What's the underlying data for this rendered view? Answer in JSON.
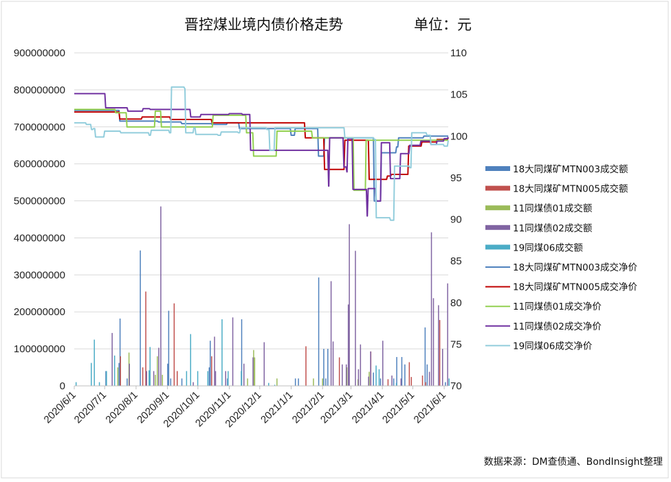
{
  "chart_data": {
    "type": "bar+line",
    "title": "晋控煤业境内债价格走势",
    "unit_label": "单位：元",
    "source": "数据来源：DM查债通、BondInsight整理",
    "x_range": [
      "2020-06-01",
      "2021-06-05"
    ],
    "x_ticks": [
      "2020/6/1",
      "2020/7/1",
      "2020/8/1",
      "2020/9/1",
      "2020/10/1",
      "2020/11/1",
      "2020/12/1",
      "2021/1/1",
      "2021/2/1",
      "2021/3/1",
      "2021/4/1",
      "2021/5/1",
      "2021/6/1"
    ],
    "y_left": {
      "range": [
        0,
        900000000
      ],
      "ticks": [
        "0",
        "100000000",
        "200000000",
        "300000000",
        "400000000",
        "500000000",
        "600000000",
        "700000000",
        "800000000",
        "900000000"
      ]
    },
    "y_right": {
      "range": [
        70,
        110
      ],
      "ticks": [
        "70",
        "75",
        "80",
        "85",
        "90",
        "95",
        "100",
        "105",
        "110"
      ]
    },
    "grid": true,
    "legend_position": "right",
    "bar_series": [
      {
        "name": "18大同煤矿MTN003成交额",
        "color": "#4F81BD",
        "points": [
          [
            "2020-07-03",
            40000000
          ],
          [
            "2020-07-16",
            62000000
          ],
          [
            "2020-07-17",
            182000000
          ],
          [
            "2020-07-24",
            20000000
          ],
          [
            "2020-08-06",
            366000000
          ],
          [
            "2020-09-02",
            60000000
          ],
          [
            "2020-09-03",
            203000000
          ],
          [
            "2020-09-05",
            20000000
          ],
          [
            "2020-09-16",
            20000000
          ],
          [
            "2020-10-13",
            50000000
          ],
          [
            "2020-10-14",
            122000000
          ],
          [
            "2020-10-31",
            20000000
          ],
          [
            "2020-11-14",
            180000000
          ],
          [
            "2021-01-06",
            20000000
          ],
          [
            "2021-01-09",
            20000000
          ],
          [
            "2021-01-29",
            293000000
          ],
          [
            "2021-02-03",
            100000000
          ],
          [
            "2021-02-05",
            20000000
          ],
          [
            "2021-02-07",
            100000000
          ],
          [
            "2021-03-24",
            36000000
          ],
          [
            "2021-03-31",
            20000000
          ],
          [
            "2021-04-13",
            20000000
          ],
          [
            "2021-04-16",
            78000000
          ],
          [
            "2021-04-21",
            78000000
          ],
          [
            "2021-04-24",
            58000000
          ],
          [
            "2021-05-14",
            158000000
          ],
          [
            "2021-05-16",
            58000000
          ],
          [
            "2021-06-03",
            10000000
          ]
        ]
      },
      {
        "name": "18大同煤矿MTN005成交额",
        "color": "#C0504D",
        "points": [
          [
            "2020-07-17",
            80000000
          ],
          [
            "2020-08-08",
            50000000
          ],
          [
            "2020-08-11",
            255000000
          ],
          [
            "2020-09-08",
            223000000
          ],
          [
            "2020-09-11",
            40000000
          ],
          [
            "2020-10-15",
            80000000
          ],
          [
            "2021-01-16",
            107000000
          ],
          [
            "2021-02-18",
            77000000
          ],
          [
            "2021-03-21",
            93000000
          ],
          [
            "2021-04-07",
            18000000
          ],
          [
            "2021-04-28",
            64000000
          ],
          [
            "2021-04-30",
            24000000
          ],
          [
            "2021-05-11",
            28000000
          ],
          [
            "2021-05-14",
            10000000
          ],
          [
            "2021-05-28",
            178000000
          ]
        ]
      },
      {
        "name": "11同煤债01成交额",
        "color": "#9BBB59",
        "points": [
          [
            "2020-07-14",
            50000000
          ],
          [
            "2020-07-25",
            90000000
          ],
          [
            "2020-08-20",
            30000000
          ],
          [
            "2020-08-22",
            80000000
          ],
          [
            "2020-08-27",
            30000000
          ],
          [
            "2020-11-19",
            20000000
          ],
          [
            "2020-11-25",
            97000000
          ],
          [
            "2020-11-26",
            77000000
          ],
          [
            "2020-12-18",
            20000000
          ],
          [
            "2021-01-23",
            20000000
          ],
          [
            "2021-02-01",
            20000000
          ],
          [
            "2021-02-25",
            50000000
          ],
          [
            "2021-03-08",
            18000000
          ],
          [
            "2021-03-19",
            38000000
          ]
        ]
      },
      {
        "name": "11同煤债02成交额",
        "color": "#8064A2",
        "points": [
          [
            "2020-07-08",
            143000000
          ],
          [
            "2020-07-25",
            60000000
          ],
          [
            "2020-08-11",
            40000000
          ],
          [
            "2020-08-18",
            40000000
          ],
          [
            "2020-08-23",
            103000000
          ],
          [
            "2020-08-25",
            485000000
          ],
          [
            "2020-09-26",
            10000000
          ],
          [
            "2020-10-17",
            133000000
          ],
          [
            "2020-10-18",
            40000000
          ],
          [
            "2020-10-28",
            40000000
          ],
          [
            "2020-11-04",
            185000000
          ],
          [
            "2020-11-15",
            60000000
          ],
          [
            "2020-11-24",
            77000000
          ],
          [
            "2020-12-05",
            118000000
          ],
          [
            "2021-02-09",
            283000000
          ],
          [
            "2021-02-11",
            120000000
          ],
          [
            "2021-02-20",
            58000000
          ],
          [
            "2021-02-24",
            58000000
          ],
          [
            "2021-02-26",
            220000000
          ],
          [
            "2021-02-27",
            437000000
          ],
          [
            "2021-03-05",
            365000000
          ],
          [
            "2021-03-08",
            45000000
          ],
          [
            "2021-03-10",
            112000000
          ],
          [
            "2021-03-18",
            25000000
          ],
          [
            "2021-03-20",
            93000000
          ],
          [
            "2021-04-01",
            122000000
          ],
          [
            "2021-04-10",
            28000000
          ],
          [
            "2021-04-19",
            20000000
          ],
          [
            "2021-05-17",
            38000000
          ],
          [
            "2021-05-19",
            415000000
          ],
          [
            "2021-05-21",
            237000000
          ],
          [
            "2021-05-26",
            218000000
          ],
          [
            "2021-05-30",
            100000000
          ],
          [
            "2021-06-04",
            277000000
          ]
        ]
      },
      {
        "name": "19同煤06成交额",
        "color": "#4BACC6",
        "points": [
          [
            "2020-06-02",
            10000000
          ],
          [
            "2020-06-17",
            62000000
          ],
          [
            "2020-06-20",
            125000000
          ],
          [
            "2020-06-25",
            10000000
          ],
          [
            "2020-07-02",
            40000000
          ],
          [
            "2020-07-10",
            82000000
          ],
          [
            "2020-08-13",
            42000000
          ],
          [
            "2020-08-14",
            105000000
          ],
          [
            "2020-09-19",
            40000000
          ],
          [
            "2020-09-23",
            140000000
          ],
          [
            "2020-09-30",
            40000000
          ],
          [
            "2020-10-10",
            40000000
          ],
          [
            "2020-10-24",
            180000000
          ],
          [
            "2020-10-30",
            40000000
          ],
          [
            "2020-11-12",
            40000000
          ],
          [
            "2020-12-09",
            8000000
          ],
          [
            "2020-12-15",
            3000000
          ],
          [
            "2021-03-25",
            55000000
          ],
          [
            "2021-03-28",
            45000000
          ],
          [
            "2021-04-14",
            8000000
          ],
          [
            "2021-06-05",
            20000000
          ]
        ]
      }
    ],
    "line_series": [
      {
        "name": "18大同煤矿MTN003成交净价",
        "color": "#4F81BD",
        "points": [
          [
            "2020-06-01",
            103.1
          ],
          [
            "2020-07-16",
            101.8
          ],
          [
            "2020-08-23",
            101.7
          ],
          [
            "2020-09-15",
            101.5
          ],
          [
            "2020-10-15",
            101.4
          ],
          [
            "2020-10-30",
            101.6
          ],
          [
            "2020-11-11",
            100.9
          ],
          [
            "2021-01-01",
            100.1
          ],
          [
            "2021-01-05",
            100.9
          ],
          [
            "2021-01-28",
            97.6
          ],
          [
            "2021-02-03",
            99.8
          ],
          [
            "2021-03-24",
            92.2
          ],
          [
            "2021-03-31",
            98.0
          ],
          [
            "2021-04-15",
            98.7
          ],
          [
            "2021-04-17",
            99.8
          ],
          [
            "2021-05-12",
            100.0
          ],
          [
            "2021-06-05",
            100.0
          ]
        ]
      },
      {
        "name": "18大同煤矿MTN005成交净价",
        "color": "#C00000",
        "points": [
          [
            "2020-06-01",
            102.9
          ],
          [
            "2020-07-16",
            102.05
          ],
          [
            "2020-08-07",
            102.3
          ],
          [
            "2020-09-04",
            102.0
          ],
          [
            "2020-10-15",
            101.6
          ],
          [
            "2021-01-15",
            99.8
          ],
          [
            "2021-02-03",
            96.0
          ],
          [
            "2021-02-12",
            96.0
          ],
          [
            "2021-02-23",
            99.5
          ],
          [
            "2021-03-19",
            94.8
          ],
          [
            "2021-04-06",
            95.2
          ],
          [
            "2021-04-10",
            95.4
          ],
          [
            "2021-04-27",
            98.8
          ],
          [
            "2021-05-10",
            99.3
          ],
          [
            "2021-05-25",
            99.6
          ],
          [
            "2021-06-05",
            99.8
          ]
        ]
      },
      {
        "name": "11同煤债01成交净价",
        "color": "#92D050",
        "points": [
          [
            "2020-06-01",
            103.2
          ],
          [
            "2020-07-12",
            102.8
          ],
          [
            "2020-07-23",
            101.1
          ],
          [
            "2020-08-20",
            103.0
          ],
          [
            "2020-08-26",
            101.1
          ],
          [
            "2020-10-16",
            102.5
          ],
          [
            "2020-11-18",
            100.4
          ],
          [
            "2020-11-25",
            97.6
          ],
          [
            "2020-12-18",
            100.6
          ],
          [
            "2021-01-22",
            99.8
          ],
          [
            "2021-03-04",
            93.5
          ],
          [
            "2021-03-16",
            99.5
          ],
          [
            "2021-06-05",
            99.5
          ]
        ]
      },
      {
        "name": "11同煤债02成交净价",
        "color": "#7030A0",
        "points": [
          [
            "2020-06-01",
            105.1
          ],
          [
            "2020-07-02",
            103.4
          ],
          [
            "2020-07-24",
            103.0
          ],
          [
            "2020-08-08",
            103.3
          ],
          [
            "2020-08-15",
            103.2
          ],
          [
            "2020-09-24",
            102.3
          ],
          [
            "2020-10-04",
            102.6
          ],
          [
            "2020-11-01",
            102.7
          ],
          [
            "2020-11-14",
            102.6
          ],
          [
            "2020-11-22",
            98.3
          ],
          [
            "2021-02-04",
            98.3
          ],
          [
            "2021-02-07",
            94.0
          ],
          [
            "2021-02-08",
            99.8
          ],
          [
            "2021-02-22",
            96.3
          ],
          [
            "2021-02-25",
            95.7
          ],
          [
            "2021-02-26",
            99.7
          ],
          [
            "2021-03-03",
            93.6
          ],
          [
            "2021-03-17",
            90.4
          ],
          [
            "2021-03-18",
            93.7
          ],
          [
            "2021-03-26",
            92.2
          ],
          [
            "2021-03-31",
            99.2
          ],
          [
            "2021-04-09",
            94.9
          ],
          [
            "2021-04-19",
            97.9
          ],
          [
            "2021-04-28",
            98.9
          ],
          [
            "2021-05-09",
            99.4
          ],
          [
            "2021-05-19",
            99.0
          ],
          [
            "2021-05-25",
            99.4
          ],
          [
            "2021-06-01",
            99.7
          ],
          [
            "2021-06-05",
            99.9
          ]
        ]
      },
      {
        "name": "19同煤06成交净价",
        "color": "#92CDDC",
        "points": [
          [
            "2020-06-01",
            101.6
          ],
          [
            "2020-06-13",
            101.4
          ],
          [
            "2020-06-18",
            100.8
          ],
          [
            "2020-06-20",
            100.9
          ],
          [
            "2020-06-22",
            99.9
          ],
          [
            "2020-07-01",
            100.6
          ],
          [
            "2020-07-17",
            100.4
          ],
          [
            "2020-08-14",
            100.1
          ],
          [
            "2020-08-16",
            100.7
          ],
          [
            "2020-09-03",
            100.4
          ],
          [
            "2020-09-05",
            105.9
          ],
          [
            "2020-09-18",
            105.7
          ],
          [
            "2020-09-19",
            100.4
          ],
          [
            "2020-09-27",
            101.0
          ],
          [
            "2020-09-29",
            100.2
          ],
          [
            "2020-10-21",
            100.1
          ],
          [
            "2020-10-24",
            100.5
          ],
          [
            "2020-11-10",
            100.4
          ],
          [
            "2020-11-12",
            101.0
          ],
          [
            "2020-12-08",
            100.8
          ],
          [
            "2020-12-11",
            98.3
          ],
          [
            "2020-12-15",
            98.3
          ],
          [
            "2020-12-16",
            101.0
          ],
          [
            "2021-02-23",
            99.8
          ],
          [
            "2021-03-24",
            99.6
          ],
          [
            "2021-03-26",
            90.2
          ],
          [
            "2021-04-09",
            89.9
          ],
          [
            "2021-04-13",
            96.4
          ],
          [
            "2021-04-28",
            96.2
          ],
          [
            "2021-04-30",
            100.4
          ],
          [
            "2021-05-15",
            100.1
          ],
          [
            "2021-05-19",
            99.0
          ],
          [
            "2021-06-01",
            98.8
          ],
          [
            "2021-06-05",
            99.5
          ]
        ]
      }
    ]
  }
}
